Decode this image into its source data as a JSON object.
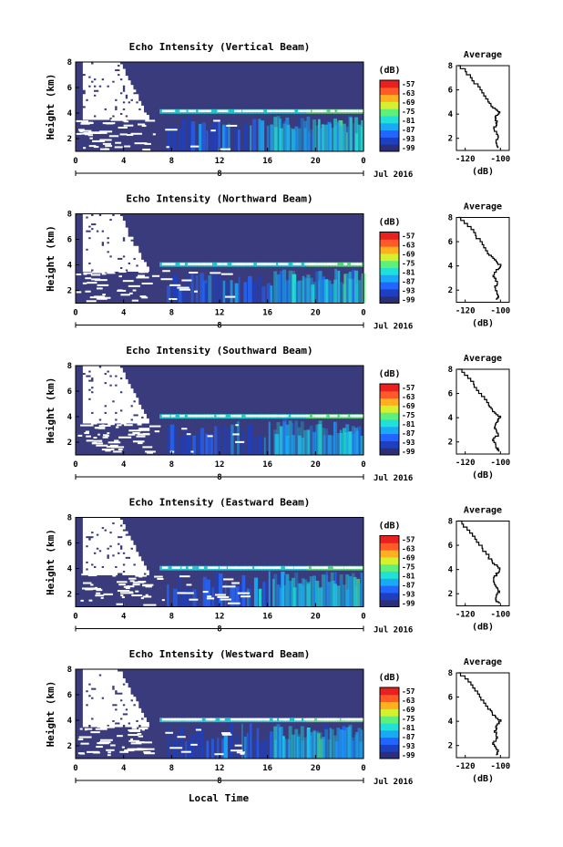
{
  "figure": {
    "xlabel": "Local Time"
  },
  "colorbar": {
    "unit_label": "(dB)",
    "tick_labels": [
      "-57",
      "-63",
      "-69",
      "-75",
      "-81",
      "-87",
      "-93",
      "-99"
    ],
    "colors": [
      "#2b2f7a",
      "#1d3fc0",
      "#2266ff",
      "#1aa9f5",
      "#20e0d8",
      "#5ef07a",
      "#d6f030",
      "#ffb020",
      "#ff5a28",
      "#e82020"
    ],
    "background": "#3a3b7c",
    "nodata": "#ffffff"
  },
  "chart_data": [
    {
      "type": "heatmap",
      "title": "Echo Intensity (Vertical Beam)",
      "ylabel": "Height (km)",
      "x_ticks": [
        "0",
        "4",
        "8",
        "12",
        "16",
        "20",
        "0"
      ],
      "y_ticks": [
        "2",
        "4",
        "6",
        "8"
      ],
      "xlim": [
        0,
        24
      ],
      "ylim": [
        1,
        8
      ],
      "date_label": "8",
      "date_suffix": "Jul 2016",
      "layer_height_km": 4.1,
      "profile": {
        "title": "Average",
        "xlabel": "(dB)",
        "x_ticks": [
          "-120",
          "-100"
        ],
        "y_ticks": [
          "2",
          "4",
          "6",
          "8"
        ],
        "xlim": [
          -125,
          -95
        ],
        "ylim": [
          1,
          8
        ],
        "heights": [
          8,
          7,
          6,
          5,
          4.5,
          4.1,
          3.7,
          3.2,
          2.7,
          2.2,
          1.6,
          1.2
        ],
        "values": [
          -124,
          -117,
          -112,
          -107,
          -104,
          -100,
          -103,
          -102,
          -104,
          -101,
          -103,
          -101
        ]
      }
    },
    {
      "type": "heatmap",
      "title": "Echo Intensity (Northward Beam)",
      "ylabel": "Height (km)",
      "x_ticks": [
        "0",
        "4",
        "8",
        "12",
        "16",
        "20",
        "0"
      ],
      "y_ticks": [
        "2",
        "4",
        "6",
        "8"
      ],
      "xlim": [
        0,
        24
      ],
      "ylim": [
        1,
        8
      ],
      "date_label": "8",
      "date_suffix": "Jul 2016",
      "layer_height_km": 4.0,
      "profile": {
        "title": "Average",
        "xlabel": "(dB)",
        "x_ticks": [
          "-120",
          "-100"
        ],
        "y_ticks": [
          "2",
          "4",
          "6",
          "8"
        ],
        "xlim": [
          -125,
          -95
        ],
        "ylim": [
          1,
          8
        ],
        "heights": [
          8,
          7,
          6,
          5,
          4.5,
          4.0,
          3.6,
          3.1,
          2.6,
          2.1,
          1.5,
          1.2
        ],
        "values": [
          -124,
          -117,
          -112,
          -107,
          -104,
          -100,
          -102,
          -104,
          -102,
          -103,
          -101,
          -102
        ]
      }
    },
    {
      "type": "heatmap",
      "title": "Echo Intensity (Southward Beam)",
      "ylabel": "Height (km)",
      "x_ticks": [
        "0",
        "4",
        "8",
        "12",
        "16",
        "20",
        "0"
      ],
      "y_ticks": [
        "2",
        "4",
        "6",
        "8"
      ],
      "xlim": [
        0,
        24
      ],
      "ylim": [
        1,
        8
      ],
      "date_label": "8",
      "date_suffix": "Jul 2016",
      "layer_height_km": 4.0,
      "profile": {
        "title": "Average",
        "xlabel": "(dB)",
        "x_ticks": [
          "-120",
          "-100"
        ],
        "y_ticks": [
          "2",
          "4",
          "6",
          "8"
        ],
        "xlim": [
          -125,
          -95
        ],
        "ylim": [
          1,
          8
        ],
        "heights": [
          8,
          7,
          6,
          5,
          4.5,
          4.0,
          3.6,
          3.1,
          2.6,
          2.1,
          1.5,
          1.2
        ],
        "values": [
          -124,
          -117,
          -112,
          -107,
          -104,
          -100,
          -102,
          -103,
          -101,
          -104,
          -102,
          -101
        ]
      }
    },
    {
      "type": "heatmap",
      "title": "Echo Intensity (Eastward Beam)",
      "ylabel": "Height (km)",
      "x_ticks": [
        "0",
        "4",
        "8",
        "12",
        "16",
        "20",
        "0"
      ],
      "y_ticks": [
        "2",
        "4",
        "6",
        "8"
      ],
      "xlim": [
        0,
        24
      ],
      "ylim": [
        1,
        8
      ],
      "date_label": "8",
      "date_suffix": "Jul 2016",
      "layer_height_km": 4.0,
      "profile": {
        "title": "Average",
        "xlabel": "(dB)",
        "x_ticks": [
          "-120",
          "-100"
        ],
        "y_ticks": [
          "2",
          "4",
          "6",
          "8"
        ],
        "xlim": [
          -125,
          -95
        ],
        "ylim": [
          1,
          8
        ],
        "heights": [
          8,
          7,
          6,
          5,
          4.5,
          4.0,
          3.6,
          3.1,
          2.6,
          2.1,
          1.5,
          1.2
        ],
        "values": [
          -124,
          -117,
          -112,
          -107,
          -104,
          -100,
          -102,
          -104,
          -103,
          -101,
          -103,
          -101
        ]
      }
    },
    {
      "type": "heatmap",
      "title": "Echo Intensity (Westward Beam)",
      "ylabel": "Height (km)",
      "x_ticks": [
        "0",
        "4",
        "8",
        "12",
        "16",
        "20",
        "0"
      ],
      "y_ticks": [
        "2",
        "4",
        "6",
        "8"
      ],
      "xlim": [
        0,
        24
      ],
      "ylim": [
        1,
        8
      ],
      "date_label": "8",
      "date_suffix": "Jul 2016",
      "layer_height_km": 4.0,
      "profile": {
        "title": "Average",
        "xlabel": "(dB)",
        "x_ticks": [
          "-120",
          "-100"
        ],
        "y_ticks": [
          "2",
          "4",
          "6",
          "8"
        ],
        "xlim": [
          -125,
          -95
        ],
        "ylim": [
          1,
          8
        ],
        "heights": [
          8,
          7,
          6,
          5,
          4.5,
          4.0,
          3.6,
          3.1,
          2.6,
          2.1,
          1.5,
          1.2
        ],
        "values": [
          -124,
          -117,
          -112,
          -107,
          -104,
          -100,
          -102,
          -103,
          -102,
          -104,
          -101,
          -102
        ]
      }
    }
  ]
}
